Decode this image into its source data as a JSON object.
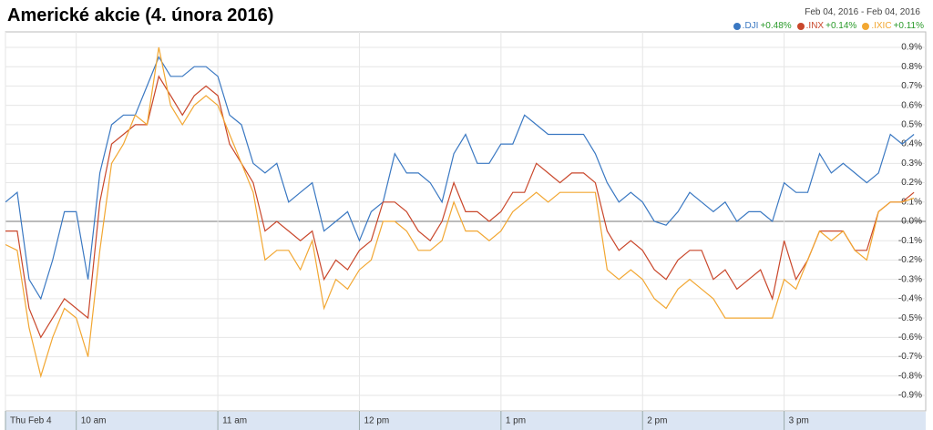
{
  "chart_data": {
    "type": "line",
    "title": "Americké akcie (4. února 2016)",
    "date_range": "Feb 04, 2016  -  Feb 04, 2016",
    "x": [
      0,
      5,
      10,
      15,
      20,
      25,
      30,
      35,
      40,
      45,
      50,
      55,
      60,
      65,
      70,
      75,
      80,
      85,
      90,
      95,
      100,
      105,
      110,
      115,
      120,
      125,
      130,
      135,
      140,
      145,
      150,
      155,
      160,
      165,
      170,
      175,
      180,
      185,
      190,
      195,
      200,
      205,
      210,
      215,
      220,
      225,
      230,
      235,
      240,
      245,
      250,
      255,
      260,
      265,
      270,
      275,
      280,
      285,
      290,
      295,
      300,
      305,
      310,
      315,
      320,
      325,
      330,
      335,
      340,
      345,
      350,
      355,
      360,
      365,
      370,
      375,
      380,
      385
    ],
    "xlim": [
      0,
      390
    ],
    "xticks": [
      {
        "value": 0,
        "label": "Thu Feb 4"
      },
      {
        "value": 30,
        "label": "10 am"
      },
      {
        "value": 90,
        "label": "11 am"
      },
      {
        "value": 150,
        "label": "12 pm"
      },
      {
        "value": 210,
        "label": "1 pm"
      },
      {
        "value": 270,
        "label": "2 pm"
      },
      {
        "value": 330,
        "label": "3 pm"
      }
    ],
    "ylim": [
      -0.98,
      0.98
    ],
    "yticks": [
      {
        "value": -0.9,
        "label": "-0.9%"
      },
      {
        "value": -0.8,
        "label": "-0.8%"
      },
      {
        "value": -0.7,
        "label": "-0.7%"
      },
      {
        "value": -0.6,
        "label": "-0.6%"
      },
      {
        "value": -0.5,
        "label": "-0.5%"
      },
      {
        "value": -0.4,
        "label": "-0.4%"
      },
      {
        "value": -0.3,
        "label": "-0.3%"
      },
      {
        "value": -0.2,
        "label": "-0.2%"
      },
      {
        "value": -0.1,
        "label": "-0.1%"
      },
      {
        "value": 0,
        "label": "0.0%"
      },
      {
        "value": 0.1,
        "label": "0.1%"
      },
      {
        "value": 0.2,
        "label": "0.2%"
      },
      {
        "value": 0.3,
        "label": "0.3%"
      },
      {
        "value": 0.4,
        "label": "0.4%"
      },
      {
        "value": 0.5,
        "label": "0.5%"
      },
      {
        "value": 0.6,
        "label": "0.6%"
      },
      {
        "value": 0.7,
        "label": "0.7%"
      },
      {
        "value": 0.8,
        "label": "0.8%"
      },
      {
        "value": 0.9,
        "label": "0.9%"
      }
    ],
    "grid": true,
    "series": [
      {
        "name": ".DJI",
        "change": "+0.48%",
        "color": "#3a78c2",
        "values": [
          0.1,
          0.15,
          -0.3,
          -0.4,
          -0.2,
          0.05,
          0.05,
          -0.3,
          0.25,
          0.5,
          0.55,
          0.55,
          0.7,
          0.85,
          0.75,
          0.75,
          0.8,
          0.8,
          0.75,
          0.55,
          0.5,
          0.3,
          0.25,
          0.3,
          0.1,
          0.15,
          0.2,
          -0.05,
          0.0,
          0.05,
          -0.1,
          0.05,
          0.1,
          0.35,
          0.25,
          0.25,
          0.2,
          0.1,
          0.35,
          0.45,
          0.3,
          0.3,
          0.4,
          0.4,
          0.55,
          0.5,
          0.45,
          0.45,
          0.45,
          0.45,
          0.35,
          0.2,
          0.1,
          0.15,
          0.1,
          0.0,
          -0.02,
          0.05,
          0.15,
          0.1,
          0.05,
          0.1,
          0.0,
          0.05,
          0.05,
          0.0,
          0.2,
          0.15,
          0.15,
          0.35,
          0.25,
          0.3,
          0.25,
          0.2,
          0.25,
          0.45,
          0.4,
          0.45
        ]
      },
      {
        "name": ".INX",
        "change": "+0.14%",
        "color": "#c9472b",
        "values": [
          -0.05,
          -0.05,
          -0.45,
          -0.6,
          -0.5,
          -0.4,
          -0.45,
          -0.5,
          0.1,
          0.4,
          0.45,
          0.5,
          0.5,
          0.75,
          0.65,
          0.55,
          0.65,
          0.7,
          0.65,
          0.4,
          0.3,
          0.2,
          -0.05,
          0.0,
          -0.05,
          -0.1,
          -0.05,
          -0.3,
          -0.2,
          -0.25,
          -0.15,
          -0.1,
          0.1,
          0.1,
          0.05,
          -0.05,
          -0.1,
          0.0,
          0.2,
          0.05,
          0.05,
          0.0,
          0.05,
          0.15,
          0.15,
          0.3,
          0.25,
          0.2,
          0.25,
          0.25,
          0.2,
          -0.05,
          -0.15,
          -0.1,
          -0.15,
          -0.25,
          -0.3,
          -0.2,
          -0.15,
          -0.15,
          -0.3,
          -0.25,
          -0.35,
          -0.3,
          -0.25,
          -0.4,
          -0.1,
          -0.3,
          -0.2,
          -0.05,
          -0.05,
          -0.05,
          -0.15,
          -0.15,
          0.05,
          0.1,
          0.1,
          0.15
        ]
      },
      {
        "name": ".IXIC",
        "change": "+0.11%",
        "color": "#f2a732",
        "values": [
          -0.12,
          -0.15,
          -0.55,
          -0.8,
          -0.6,
          -0.45,
          -0.5,
          -0.7,
          -0.15,
          0.3,
          0.4,
          0.55,
          0.5,
          0.9,
          0.6,
          0.5,
          0.6,
          0.65,
          0.6,
          0.45,
          0.3,
          0.15,
          -0.2,
          -0.15,
          -0.15,
          -0.25,
          -0.1,
          -0.45,
          -0.3,
          -0.35,
          -0.25,
          -0.2,
          0.0,
          0.0,
          -0.05,
          -0.15,
          -0.15,
          -0.1,
          0.1,
          -0.05,
          -0.05,
          -0.1,
          -0.05,
          0.05,
          0.1,
          0.15,
          0.1,
          0.15,
          0.15,
          0.15,
          0.15,
          -0.25,
          -0.3,
          -0.25,
          -0.3,
          -0.4,
          -0.45,
          -0.35,
          -0.3,
          -0.35,
          -0.4,
          -0.5,
          -0.5,
          -0.5,
          -0.5,
          -0.5,
          -0.3,
          -0.35,
          -0.2,
          -0.05,
          -0.1,
          -0.05,
          -0.15,
          -0.2,
          0.05,
          0.1,
          0.1,
          0.12
        ]
      }
    ]
  }
}
